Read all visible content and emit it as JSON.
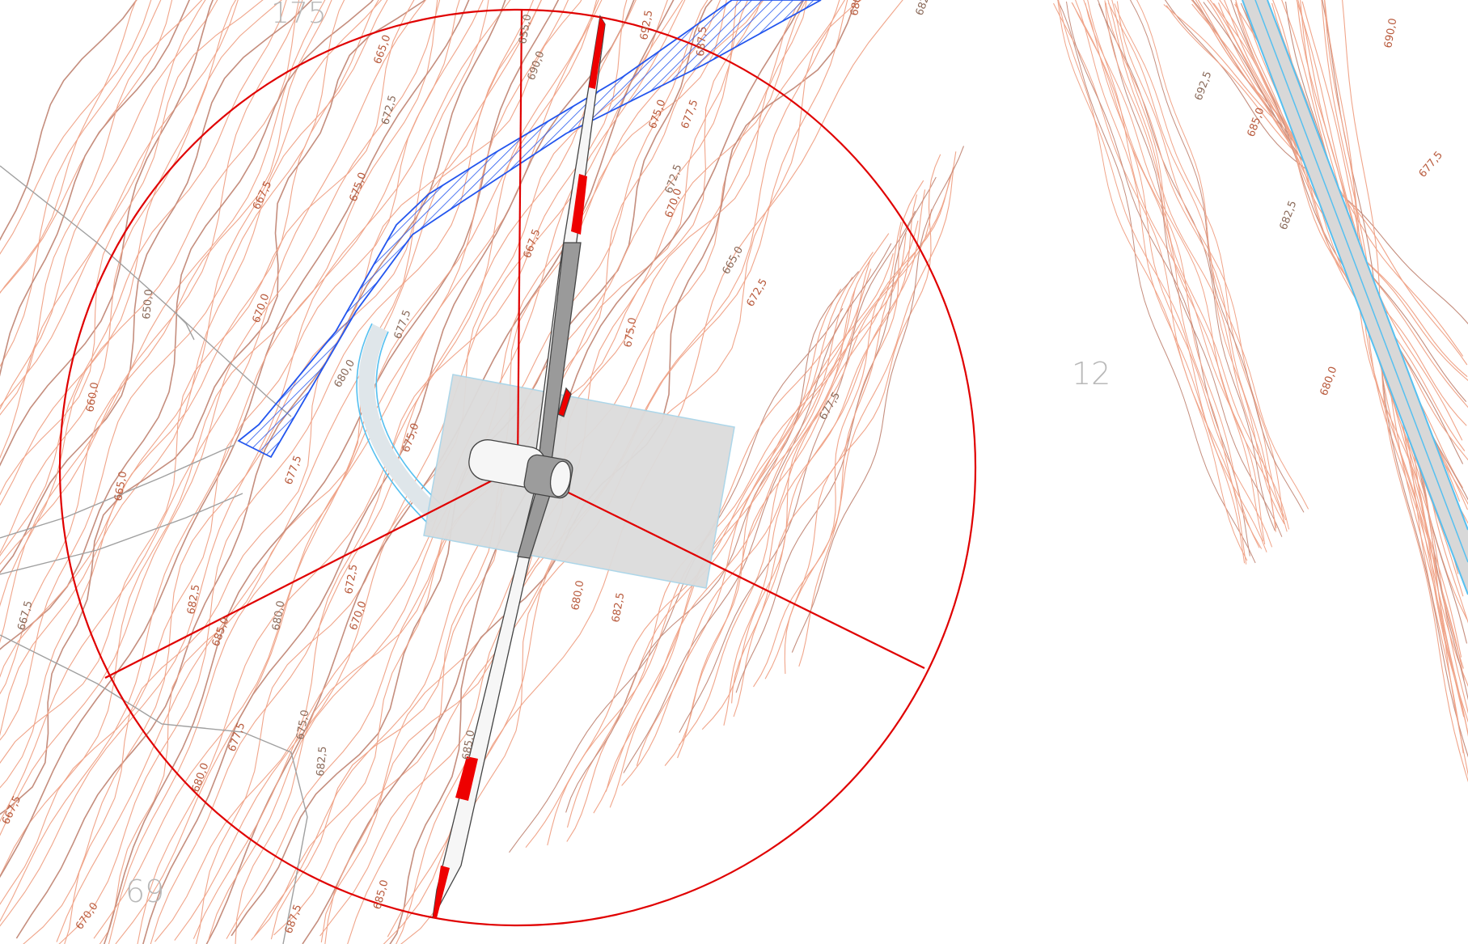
{
  "parcels": [
    {
      "id": "parcel-175",
      "number": "175"
    },
    {
      "id": "parcel-12",
      "number": "12"
    },
    {
      "id": "parcel-69",
      "number": "69"
    }
  ],
  "contour_labels": [
    "655,0",
    "665,0",
    "667,5",
    "650,0",
    "660,0",
    "665,0",
    "667,5",
    "667,5",
    "670,0",
    "672,5",
    "675,0",
    "670,0",
    "677,5",
    "675,0",
    "677,5",
    "680,0",
    "682,5",
    "685,0",
    "680,0",
    "670,0",
    "672,5",
    "675,0",
    "677,5",
    "680,0",
    "682,5",
    "685,0",
    "687,5",
    "690,0",
    "692,5",
    "680,0",
    "682,5",
    "675,0",
    "677,5",
    "672,5",
    "670,0",
    "667,5",
    "665,0",
    "672,5",
    "675,0",
    "677,5",
    "680,0",
    "682,5",
    "685,0",
    "687,5",
    "690,0",
    "692,5",
    "685,0",
    "677,5",
    "682,5",
    "680,0"
  ],
  "colors": {
    "contour": "#f0a58a",
    "contour_index": "#c58e7e",
    "rotor_circle": "#e00000",
    "platform": "#dcdcdc",
    "road_hatch": "#2255ee",
    "road_edge": "#56c0f0",
    "parcel_line": "#a0a0a0",
    "blade_tip": "#ee0000"
  },
  "icons": {
    "turbine": "wind-turbine-plan-icon"
  }
}
